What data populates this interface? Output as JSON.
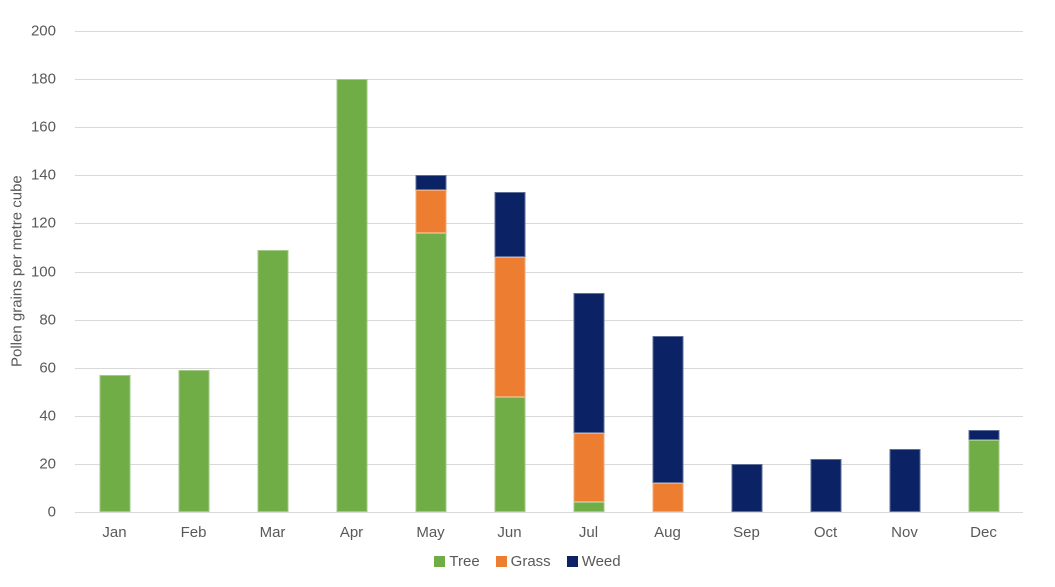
{
  "chart_data": {
    "type": "bar",
    "stacked": true,
    "title": "",
    "xlabel": "",
    "ylabel": "Pollen grains per metre cube",
    "ylim": [
      0,
      200
    ],
    "yticks": [
      0,
      20,
      40,
      60,
      80,
      100,
      120,
      140,
      160,
      180,
      200
    ],
    "grid": true,
    "legend_position": "bottom",
    "categories": [
      "Jan",
      "Feb",
      "Mar",
      "Apr",
      "May",
      "Jun",
      "Jul",
      "Aug",
      "Sep",
      "Oct",
      "Nov",
      "Dec"
    ],
    "series": [
      {
        "name": "Tree",
        "color": "#70AD47",
        "values": [
          57,
          59,
          109,
          180,
          116,
          48,
          4,
          0,
          0,
          0,
          0,
          30
        ]
      },
      {
        "name": "Grass",
        "color": "#ED7D31",
        "values": [
          0,
          0,
          0,
          0,
          18,
          58,
          29,
          12,
          0,
          0,
          0,
          0
        ]
      },
      {
        "name": "Weed",
        "color": "#0B2265",
        "values": [
          0,
          0,
          0,
          0,
          6,
          27,
          58,
          61,
          20,
          22,
          26,
          4
        ]
      }
    ]
  },
  "style": {
    "gridline_color": "#d9d9d9",
    "text_color": "#595959",
    "background_color": "#ffffff"
  }
}
